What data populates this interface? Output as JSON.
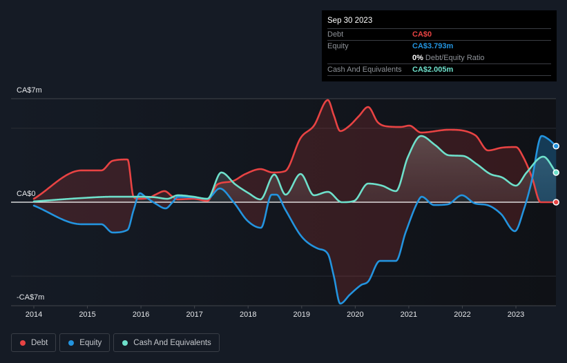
{
  "tooltip": {
    "date": "Sep 30 2023",
    "rows": [
      {
        "label": "Debt",
        "value": "CA$0",
        "color": "#e84343"
      },
      {
        "label": "Equity",
        "value": "CA$3.793m",
        "color": "#2394df"
      },
      {
        "label": "Cash And Equivalents",
        "value": "CA$2.005m",
        "color": "#6ee0cb"
      }
    ],
    "ratio": {
      "value": "0%",
      "label": "Debt/Equity Ratio"
    }
  },
  "legend": {
    "items": [
      {
        "label": "Debt",
        "color": "#e84343",
        "icon": "dot"
      },
      {
        "label": "Equity",
        "color": "#2394df",
        "icon": "dot"
      },
      {
        "label": "Cash And Equivalents",
        "color": "#6ee0cb",
        "icon": "dot"
      }
    ]
  },
  "chart_data": {
    "type": "line",
    "title": "",
    "xlabel": "",
    "ylabel": "",
    "unit": "CA$ millions",
    "xlim": [
      2014,
      2023.75
    ],
    "ylim": [
      -7,
      7
    ],
    "grid": true,
    "gridlines": [
      7,
      5,
      -5
    ],
    "legend_position": "bottom-left",
    "x_ticks": {
      "values": [
        2014,
        2015,
        2016,
        2017,
        2018,
        2019,
        2020,
        2021,
        2022,
        2023
      ],
      "labels": [
        "2014",
        "2015",
        "2016",
        "2017",
        "2018",
        "2019",
        "2020",
        "2021",
        "2022",
        "2023"
      ]
    },
    "y_ticks": {
      "values": [
        7,
        0,
        -7
      ],
      "labels": [
        "CA$7m",
        "CA$0",
        "-CA$7m"
      ]
    },
    "highlight": {
      "x": 2023.75,
      "label": "Sep 30 2023"
    },
    "series": [
      {
        "name": "Debt",
        "color": "#e84343",
        "points": [
          [
            2014.0,
            0.23
          ],
          [
            2014.89,
            2.15
          ],
          [
            2015.26,
            2.15
          ],
          [
            2015.47,
            2.8
          ],
          [
            2015.75,
            2.89
          ],
          [
            2015.86,
            0.37
          ],
          [
            2015.95,
            0.23
          ],
          [
            2016.14,
            0.28
          ],
          [
            2016.27,
            0.51
          ],
          [
            2016.44,
            0.75
          ],
          [
            2016.59,
            0.37
          ],
          [
            2016.68,
            0.19
          ],
          [
            2016.98,
            0.23
          ],
          [
            2017.24,
            0.09
          ],
          [
            2017.43,
            1.21
          ],
          [
            2017.69,
            1.4
          ],
          [
            2017.95,
            1.91
          ],
          [
            2018.23,
            2.24
          ],
          [
            2018.46,
            2.01
          ],
          [
            2018.69,
            2.1
          ],
          [
            2018.98,
            4.34
          ],
          [
            2019.23,
            5.18
          ],
          [
            2019.49,
            6.91
          ],
          [
            2019.6,
            5.88
          ],
          [
            2019.72,
            4.81
          ],
          [
            2019.88,
            5.13
          ],
          [
            2020.07,
            5.83
          ],
          [
            2020.24,
            6.44
          ],
          [
            2020.42,
            5.41
          ],
          [
            2020.59,
            5.13
          ],
          [
            2020.85,
            5.09
          ],
          [
            2021.01,
            5.18
          ],
          [
            2021.23,
            4.71
          ],
          [
            2021.75,
            4.9
          ],
          [
            2022.24,
            4.53
          ],
          [
            2022.48,
            3.5
          ],
          [
            2022.74,
            3.69
          ],
          [
            2023.0,
            3.73
          ],
          [
            2023.14,
            3.03
          ],
          [
            2023.3,
            1.68
          ],
          [
            2023.46,
            0.0
          ],
          [
            2023.75,
            0.0
          ]
        ]
      },
      {
        "name": "Equity",
        "color": "#2394df",
        "points": [
          [
            2014.0,
            -0.23
          ],
          [
            2014.89,
            -1.49
          ],
          [
            2015.26,
            -1.49
          ],
          [
            2015.47,
            -2.05
          ],
          [
            2015.75,
            -1.87
          ],
          [
            2015.86,
            -0.56
          ],
          [
            2015.98,
            0.61
          ],
          [
            2016.08,
            0.37
          ],
          [
            2016.27,
            -0.09
          ],
          [
            2016.46,
            -0.42
          ],
          [
            2016.59,
            0.0
          ],
          [
            2016.69,
            0.37
          ],
          [
            2016.98,
            0.33
          ],
          [
            2017.24,
            0.23
          ],
          [
            2017.47,
            0.93
          ],
          [
            2017.73,
            0.0
          ],
          [
            2017.99,
            -1.26
          ],
          [
            2018.24,
            -1.73
          ],
          [
            2018.44,
            0.51
          ],
          [
            2018.53,
            0.51
          ],
          [
            2018.69,
            -0.47
          ],
          [
            2019.0,
            -2.33
          ],
          [
            2019.3,
            -3.13
          ],
          [
            2019.49,
            -3.5
          ],
          [
            2019.6,
            -4.99
          ],
          [
            2019.72,
            -6.86
          ],
          [
            2019.9,
            -6.25
          ],
          [
            2020.11,
            -5.6
          ],
          [
            2020.24,
            -5.37
          ],
          [
            2020.46,
            -3.97
          ],
          [
            2020.76,
            -3.97
          ],
          [
            2020.94,
            -2.05
          ],
          [
            2021.17,
            0.05
          ],
          [
            2021.24,
            0.37
          ],
          [
            2021.47,
            -0.19
          ],
          [
            2021.73,
            -0.14
          ],
          [
            2021.99,
            0.47
          ],
          [
            2022.24,
            -0.09
          ],
          [
            2022.46,
            -0.19
          ],
          [
            2022.72,
            -0.79
          ],
          [
            2022.98,
            -1.96
          ],
          [
            2023.15,
            -0.47
          ],
          [
            2023.28,
            1.21
          ],
          [
            2023.48,
            4.48
          ],
          [
            2023.61,
            4.25
          ],
          [
            2023.75,
            3.793
          ]
        ]
      },
      {
        "name": "Cash And Equivalents",
        "color": "#6ee0cb",
        "points": [
          [
            2014.0,
            0.05
          ],
          [
            2014.89,
            0.28
          ],
          [
            2015.47,
            0.37
          ],
          [
            2016.03,
            0.37
          ],
          [
            2016.27,
            0.33
          ],
          [
            2016.49,
            0.23
          ],
          [
            2016.69,
            0.47
          ],
          [
            2016.98,
            0.37
          ],
          [
            2017.24,
            0.23
          ],
          [
            2017.5,
            2.01
          ],
          [
            2017.76,
            1.21
          ],
          [
            2018.01,
            0.61
          ],
          [
            2018.23,
            0.19
          ],
          [
            2018.49,
            1.87
          ],
          [
            2018.7,
            0.51
          ],
          [
            2018.98,
            1.91
          ],
          [
            2019.23,
            0.47
          ],
          [
            2019.49,
            0.7
          ],
          [
            2019.75,
            0.0
          ],
          [
            2019.98,
            0.09
          ],
          [
            2020.24,
            1.26
          ],
          [
            2020.5,
            1.12
          ],
          [
            2020.76,
            0.75
          ],
          [
            2020.98,
            3.03
          ],
          [
            2021.23,
            4.48
          ],
          [
            2021.49,
            3.87
          ],
          [
            2021.75,
            3.17
          ],
          [
            2022.01,
            3.13
          ],
          [
            2022.27,
            2.57
          ],
          [
            2022.52,
            1.91
          ],
          [
            2022.74,
            1.68
          ],
          [
            2023.0,
            1.12
          ],
          [
            2023.2,
            2.01
          ],
          [
            2023.51,
            3.08
          ],
          [
            2023.75,
            2.005
          ]
        ]
      }
    ]
  }
}
